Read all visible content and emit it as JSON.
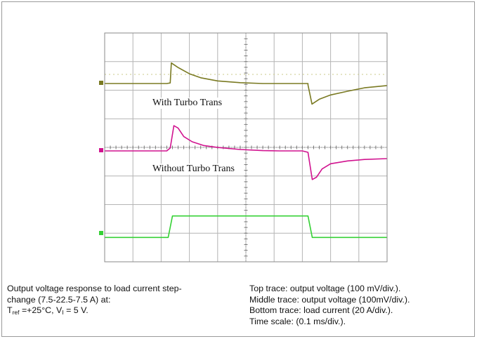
{
  "chart_data": {
    "type": "line",
    "title": "",
    "xlabel": "",
    "ylabel": "",
    "grid": true,
    "x_divisions": 10,
    "y_divisions": 8,
    "x_unit": "ms",
    "x_per_div": 0.1,
    "annotations": [
      "With Turbo Trans",
      "Without Turbo Trans"
    ],
    "series": [
      {
        "color": "#7a7a22",
        "unit": "mV",
        "per_div": 100,
        "points": [
          [
            0,
            0
          ],
          [
            0.22,
            0
          ],
          [
            0.232,
            2
          ],
          [
            0.236,
            72
          ],
          [
            0.26,
            56
          ],
          [
            0.3,
            34
          ],
          [
            0.34,
            20
          ],
          [
            0.4,
            9
          ],
          [
            0.48,
            3
          ],
          [
            0.56,
            0
          ],
          [
            0.64,
            0
          ],
          [
            0.72,
            0
          ],
          [
            0.72,
            -5
          ],
          [
            0.734,
            -72
          ],
          [
            0.76,
            -55
          ],
          [
            0.8,
            -40
          ],
          [
            0.86,
            -27
          ],
          [
            0.92,
            -15
          ],
          [
            1.0,
            -7
          ]
        ]
      },
      {
        "color": "#d1138f",
        "unit": "mV",
        "per_div": 100,
        "points": [
          [
            0,
            0
          ],
          [
            0.22,
            0
          ],
          [
            0.232,
            10
          ],
          [
            0.245,
            88
          ],
          [
            0.26,
            80
          ],
          [
            0.28,
            50
          ],
          [
            0.31,
            32
          ],
          [
            0.35,
            19
          ],
          [
            0.4,
            12
          ],
          [
            0.48,
            5
          ],
          [
            0.56,
            1
          ],
          [
            0.62,
            0
          ],
          [
            0.7,
            0
          ],
          [
            0.72,
            -5
          ],
          [
            0.735,
            -100
          ],
          [
            0.75,
            -92
          ],
          [
            0.77,
            -63
          ],
          [
            0.8,
            -45
          ],
          [
            0.86,
            -35
          ],
          [
            0.92,
            -30
          ],
          [
            1.0,
            -27
          ]
        ]
      },
      {
        "color": "#35d135",
        "unit": "A",
        "per_div": 20,
        "points": [
          [
            0,
            7.5
          ],
          [
            0.225,
            7.5
          ],
          [
            0.24,
            22.5
          ],
          [
            0.72,
            22.5
          ],
          [
            0.735,
            7.5
          ],
          [
            1.0,
            7.5
          ]
        ]
      }
    ]
  },
  "caption": {
    "left_line1": " Output voltage response to load current step-",
    "left_line2": "change (7.5-22.5-7.5 A) at:",
    "left_line3_t": "T",
    "left_line3_t_sub": "ref",
    "left_line3_mid": " =+25°C, V",
    "left_line3_v_sub": "I",
    "left_line3_end": " = 5 V.",
    "right_lines": [
      "Top trace: output voltage (100 mV/div.).",
      "Middle trace: output voltage (100mV/div.).",
      "Bottom trace: load current (20 A/div.).",
      "Time scale: (0.1 ms/div.)."
    ]
  }
}
